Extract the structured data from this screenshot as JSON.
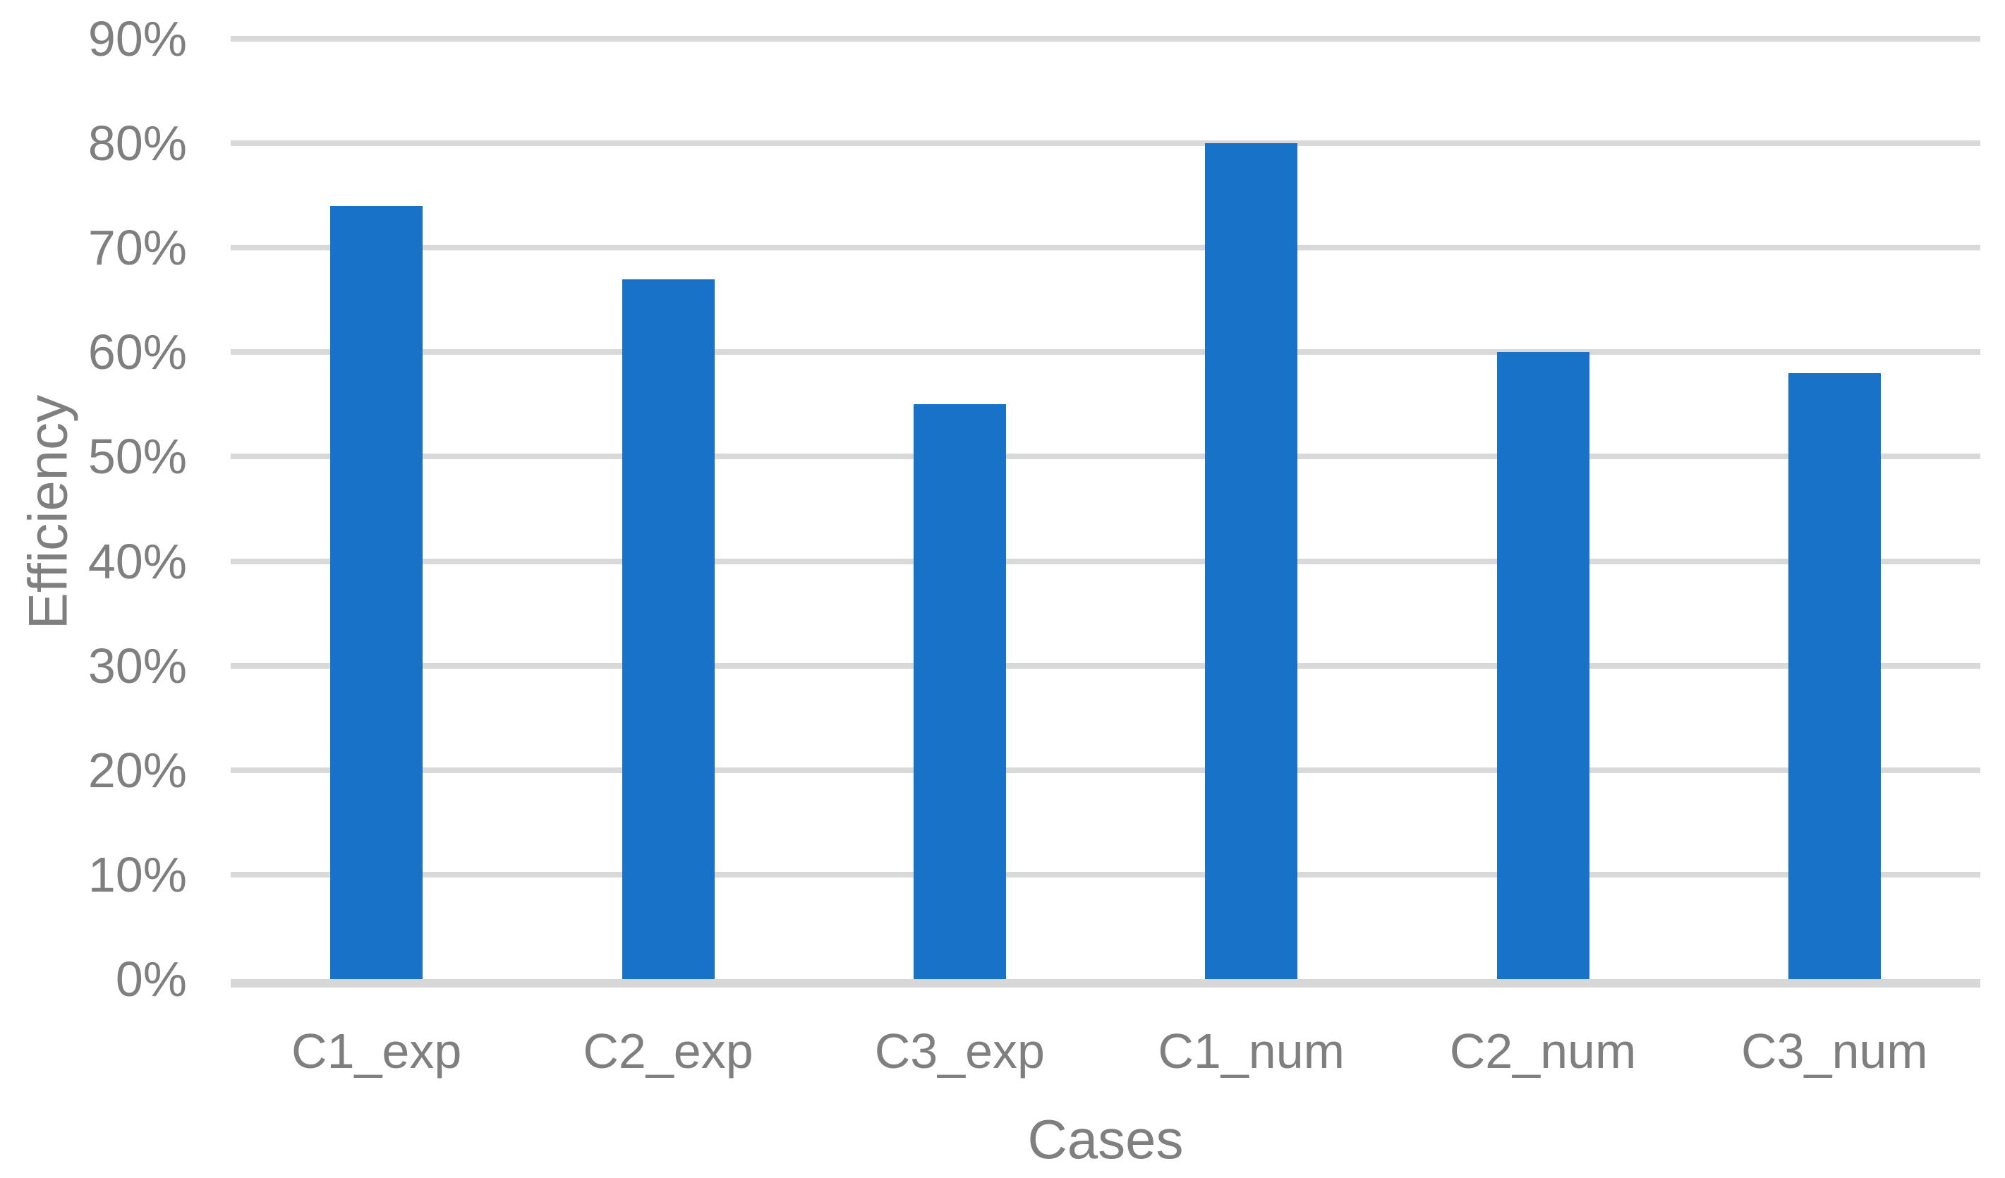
{
  "chart_data": {
    "type": "bar",
    "categories": [
      "C1_exp",
      "C2_exp",
      "C3_exp",
      "C1_num",
      "C2_num",
      "C3_num"
    ],
    "values": [
      74,
      67,
      55,
      80,
      60,
      58
    ],
    "title": "",
    "xlabel": "Cases",
    "ylabel": "Efficiency",
    "ylim": [
      0,
      90
    ],
    "ytick_step": 10,
    "ytick_labels": [
      "0%",
      "10%",
      "20%",
      "30%",
      "40%",
      "50%",
      "60%",
      "70%",
      "80%",
      "90%"
    ],
    "grid": true,
    "legend": "none",
    "colors": {
      "bar": "#1873C8",
      "gridline": "#D9D9D9",
      "axis_line": "#D7D7D7",
      "text": "#7F7F7F"
    }
  }
}
